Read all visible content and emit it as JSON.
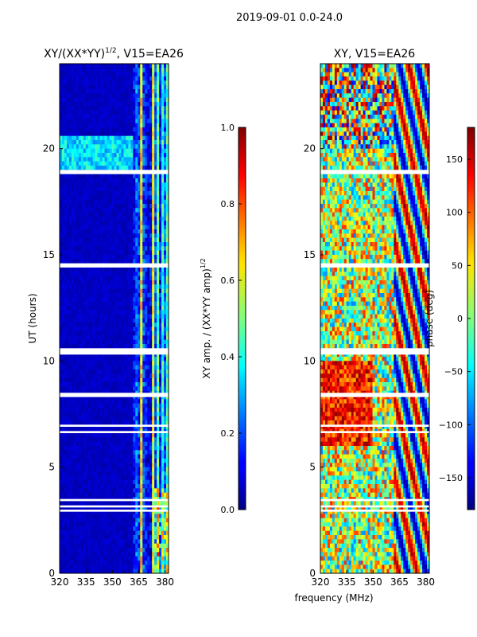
{
  "suptitle": "2019-09-01 0.0-24.0",
  "xlabel": "frequency (MHz)",
  "colors": {
    "background": "#000080",
    "gap": "#ffffff",
    "axis": "#000000"
  },
  "chart_data": [
    {
      "type": "heatmap",
      "title": "XY/(XX*YY)",
      "title_sup": "1/2",
      "title_suffix": ", V15=EA26",
      "xlabel": "",
      "ylabel": "UT (hours)",
      "xlim": [
        320,
        382
      ],
      "ylim": [
        0,
        24
      ],
      "xticks": [
        320,
        335,
        350,
        365,
        380
      ],
      "yticks": [
        0,
        5,
        10,
        15,
        20
      ],
      "colorbar": {
        "label": "XY amp. / (XX*YY amp)",
        "label_sup": "1/2",
        "range": [
          0.0,
          1.0
        ],
        "ticks": [
          "0.0",
          "0.2",
          "0.4",
          "0.6",
          "0.8",
          "1.0"
        ],
        "colormap": "jet"
      },
      "white_gap_bands_hours": [
        [
          18.8,
          19.0
        ],
        [
          14.4,
          14.6
        ],
        [
          10.3,
          10.6
        ],
        [
          8.3,
          8.5
        ],
        [
          6.9,
          7.0
        ],
        [
          6.6,
          6.7
        ],
        [
          3.4,
          3.5
        ],
        [
          3.1,
          3.2
        ],
        [
          2.9,
          3.0
        ]
      ],
      "feature": "low amplitude (~0.05) at 320-362 MHz; bright channels 0.3-1.0 between 363-381 MHz; elevated amplitude band near 19-20.5 h"
    },
    {
      "type": "heatmap",
      "title": "XY, V15=EA26",
      "xlabel": "",
      "ylabel": "",
      "xlim": [
        320,
        382
      ],
      "ylim": [
        0,
        24
      ],
      "xticks": [
        320,
        335,
        350,
        365,
        380
      ],
      "yticks": [
        0,
        5,
        10,
        15,
        20
      ],
      "colorbar": {
        "label": "phase (deg)",
        "range": [
          -180,
          180
        ],
        "ticks": [
          "−150",
          "−100",
          "−50",
          "0",
          "50",
          "100",
          "150"
        ],
        "colormap": "jet"
      },
      "white_gap_bands_hours": [
        [
          18.8,
          19.0
        ],
        [
          14.4,
          14.6
        ],
        [
          10.3,
          10.6
        ],
        [
          8.3,
          8.5
        ],
        [
          6.9,
          7.0
        ],
        [
          6.6,
          6.7
        ],
        [
          3.4,
          3.5
        ],
        [
          3.1,
          3.2
        ],
        [
          2.9,
          3.0
        ]
      ],
      "feature": "noisy phase across band; coherent phase wraps above 360 MHz"
    }
  ]
}
